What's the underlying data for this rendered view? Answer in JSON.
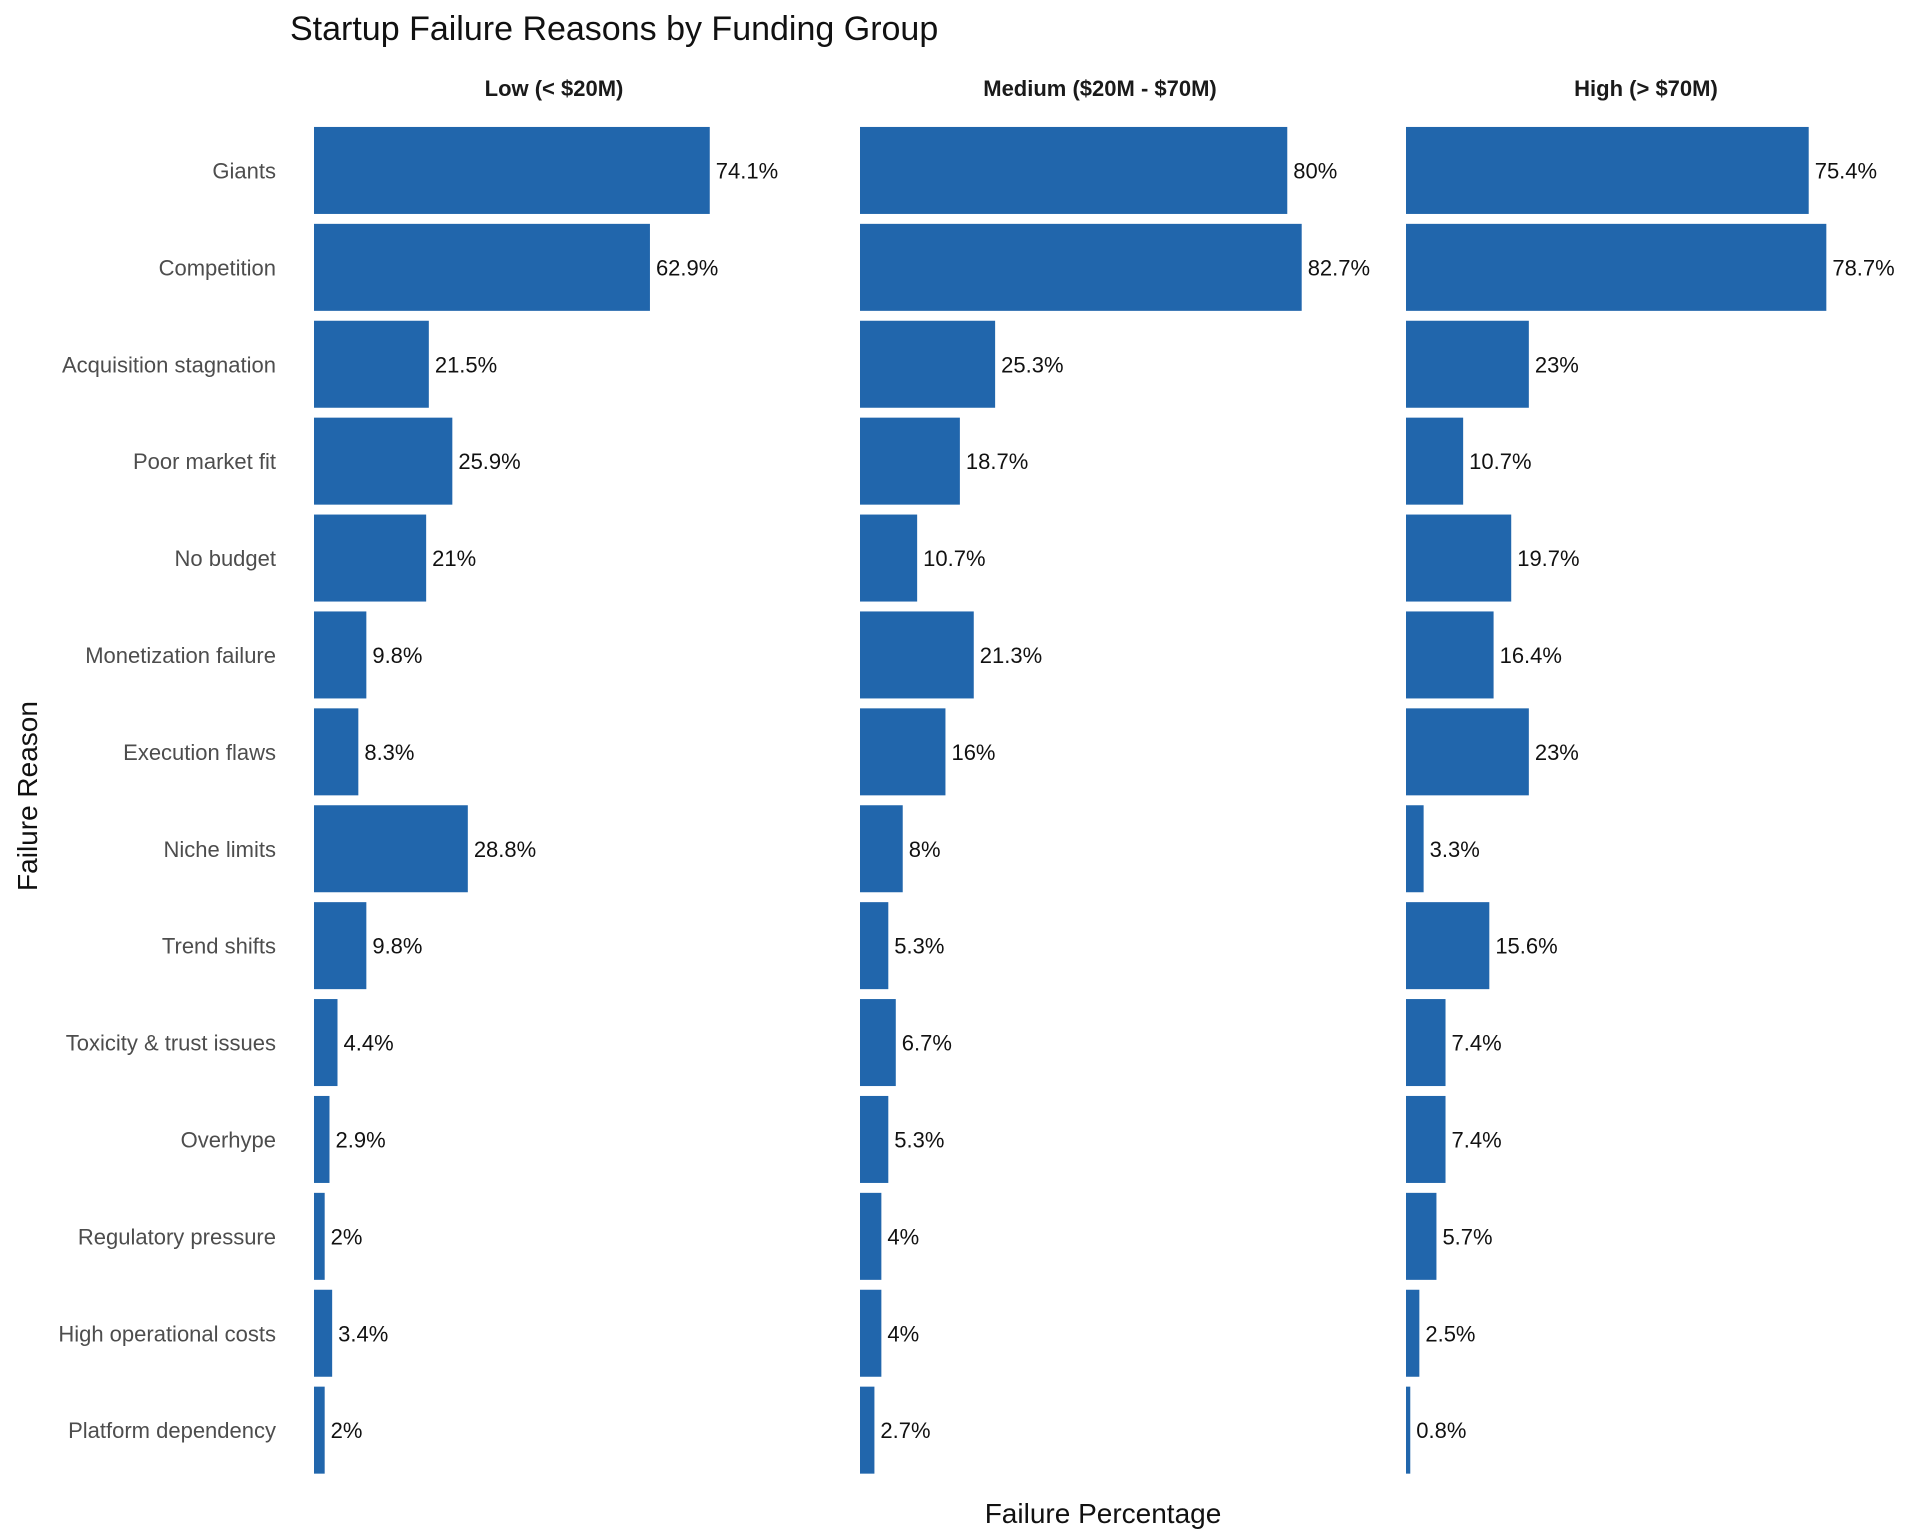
{
  "chart_data": {
    "type": "bar",
    "orientation": "horizontal",
    "title": "Startup Failure Reasons by Funding Group",
    "xlabel": "Failure Percentage",
    "ylabel": "Failure Reason",
    "grid": false,
    "legend": "none",
    "bar_color": "#2166AC",
    "xlim": [
      0,
      88
    ],
    "categories": [
      "Giants",
      "Competition",
      "Acquisition stagnation",
      "Poor market fit",
      "No budget",
      "Monetization failure",
      "Execution flaws",
      "Niche limits",
      "Trend shifts",
      "Toxicity & trust issues",
      "Overhype",
      "Regulatory pressure",
      "High operational costs",
      "Platform dependency"
    ],
    "facets": [
      {
        "name": "Low (< $20M)",
        "values": [
          74.1,
          62.9,
          21.5,
          25.9,
          21,
          9.8,
          8.3,
          28.8,
          9.8,
          4.4,
          2.9,
          2,
          3.4,
          2
        ],
        "labels": [
          "74.1%",
          "62.9%",
          "21.5%",
          "25.9%",
          "21%",
          "9.8%",
          "8.3%",
          "28.8%",
          "9.8%",
          "4.4%",
          "2.9%",
          "2%",
          "3.4%",
          "2%"
        ]
      },
      {
        "name": "Medium ($20M - $70M)",
        "values": [
          80,
          82.7,
          25.3,
          18.7,
          10.7,
          21.3,
          16,
          8,
          5.3,
          6.7,
          5.3,
          4,
          4,
          2.7
        ],
        "labels": [
          "80%",
          "82.7%",
          "25.3%",
          "18.7%",
          "10.7%",
          "21.3%",
          "16%",
          "8%",
          "5.3%",
          "6.7%",
          "5.3%",
          "4%",
          "4%",
          "2.7%"
        ]
      },
      {
        "name": "High (> $70M)",
        "values": [
          75.4,
          78.7,
          23,
          10.7,
          19.7,
          16.4,
          23,
          3.3,
          15.6,
          7.4,
          7.4,
          5.7,
          2.5,
          0.8
        ],
        "labels": [
          "75.4%",
          "78.7%",
          "23%",
          "10.7%",
          "19.7%",
          "16.4%",
          "23%",
          "3.3%",
          "15.6%",
          "7.4%",
          "7.4%",
          "5.7%",
          "2.5%",
          "0.8%"
        ]
      }
    ]
  }
}
